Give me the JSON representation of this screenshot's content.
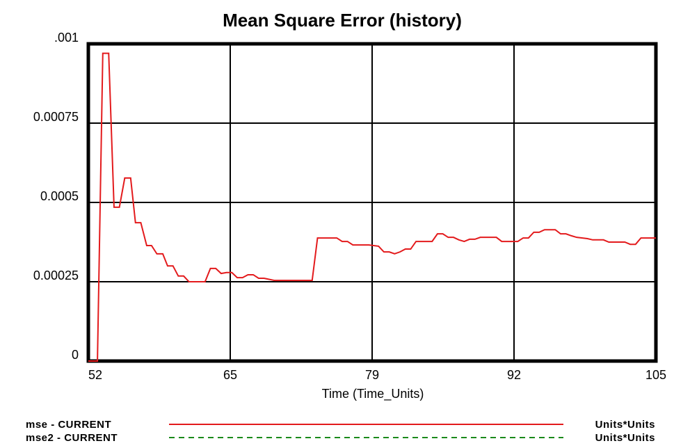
{
  "chart_data": {
    "type": "line",
    "title": "Mean Square Error (history)",
    "x_label": "Time (Time_Units)",
    "xlim": [
      52,
      105
    ],
    "xticks": [
      52,
      {
        "value": 65.25,
        "label": "65"
      },
      {
        "value": 78.5,
        "label": "79"
      },
      {
        "value": 91.75,
        "label": "92"
      },
      105
    ],
    "ylim": [
      0,
      0.001
    ],
    "yticks": [
      0,
      0.00025,
      0.0005,
      0.00075,
      {
        "value": 0.001,
        "label": ".001"
      }
    ],
    "grid": true,
    "series": [
      {
        "name": "mse - CURRENT",
        "units": "Units*Units",
        "color": "#e31a1c",
        "dash": "solid",
        "x": [
          52,
          52.85,
          53.35,
          53.9,
          54.4,
          54.9,
          55.4,
          55.95,
          56.4,
          56.9,
          57.45,
          57.9,
          58.4,
          58.95,
          59.4,
          59.9,
          60.4,
          60.9,
          61.4,
          62.9,
          63.4,
          63.9,
          64.4,
          64.9,
          65.4,
          65.9,
          66.4,
          66.9,
          67.4,
          67.9,
          68.4,
          69.4,
          72.9,
          73.4,
          75.2,
          75.7,
          76.2,
          76.7,
          78.2,
          79.1,
          79.6,
          80.1,
          80.6,
          81.1,
          81.6,
          82.1,
          82.6,
          84.1,
          84.6,
          85.1,
          85.6,
          86.1,
          86.6,
          87.1,
          87.6,
          88.1,
          88.6,
          90.1,
          90.6,
          92.1,
          92.6,
          93.1,
          93.6,
          94.1,
          94.6,
          95.6,
          96.1,
          96.6,
          97.1,
          97.6,
          98.6,
          99.1,
          100.1,
          100.6,
          102.1,
          102.6,
          103.1,
          103.6,
          105
        ],
        "values": [
          0,
          0,
          0.00097,
          0.00097,
          0.000485,
          0.000485,
          0.000577,
          0.000577,
          0.000436,
          0.000436,
          0.000364,
          0.000364,
          0.000338,
          0.000338,
          0.0003,
          0.0003,
          0.000268,
          0.000268,
          0.00025,
          0.00025,
          0.000292,
          0.000292,
          0.000276,
          0.000279,
          0.000279,
          0.000263,
          0.000263,
          0.000272,
          0.000272,
          0.000261,
          0.000261,
          0.000254,
          0.000254,
          0.000388,
          0.000388,
          0.000377,
          0.000377,
          0.000366,
          0.000366,
          0.000362,
          0.000344,
          0.000344,
          0.000338,
          0.000344,
          0.000353,
          0.000353,
          0.000377,
          0.000377,
          0.000401,
          0.000401,
          0.00039,
          0.00039,
          0.000382,
          0.000377,
          0.000384,
          0.000384,
          0.00039,
          0.00039,
          0.000377,
          0.000377,
          0.000388,
          0.000388,
          0.000406,
          0.000406,
          0.000414,
          0.000414,
          0.000401,
          0.000401,
          0.000395,
          0.00039,
          0.000386,
          0.000382,
          0.000382,
          0.000375,
          0.000375,
          0.000368,
          0.000368,
          0.000388,
          0.000388
        ]
      },
      {
        "name": "mse2 - CURRENT",
        "units": "Units*Units",
        "color": "#1a8a1a",
        "dash": "dashed",
        "x": [],
        "values": []
      }
    ]
  }
}
